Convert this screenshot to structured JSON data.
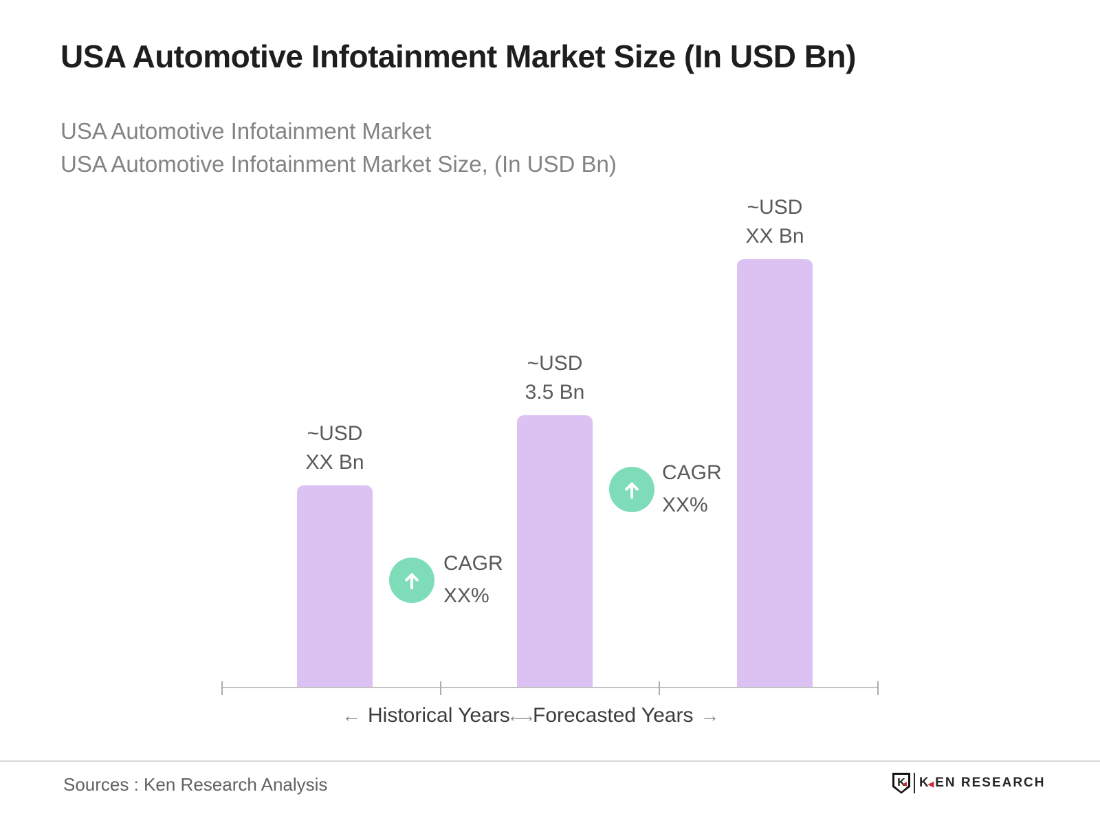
{
  "title": "USA Automotive Infotainment Market Size (In USD Bn)",
  "subtitle": "USA Automotive Infotainment Market\nUSA Automotive Infotainment Market Size, (In USD Bn)",
  "chart_data": {
    "type": "bar",
    "title": "USA Automotive Infotainment Market Size (In USD Bn)",
    "unit": "USD Bn",
    "grid": false,
    "y_axis_shown": false,
    "bar_color": "#dbc2f3",
    "annotation_circle_color": "#7eddb8",
    "bars": [
      {
        "label": "~USD\nXX Bn",
        "value": "XX",
        "value_est_bn": 2.6
      },
      {
        "label": "~USD\n3.5 Bn",
        "value": 3.5,
        "value_est_bn": 3.5
      },
      {
        "label": "~USD\nXX Bn",
        "value": "XX",
        "value_est_bn": 5.5
      }
    ],
    "cagr_annotations": [
      {
        "icon": "up-arrow-circle",
        "label": "CAGR\nXX%"
      },
      {
        "icon": "up-arrow-circle",
        "label": "CAGR\nXX%"
      }
    ],
    "x_axis": {
      "tick_count": 4,
      "segments": [
        {
          "left_arrow": "←",
          "label": "Historical Years",
          "right_arrow": "→"
        },
        {
          "left_arrow": "←",
          "label": "Forecasted Years",
          "right_arrow": "→"
        }
      ]
    }
  },
  "footer": {
    "source_text": "Sources : Ken Research Analysis",
    "logo": {
      "shield_letter": "K",
      "shield_triangle": "◀",
      "brand_k": "K",
      "brand_triangle": "◀",
      "brand_rest": "EN RESEARCH"
    }
  }
}
